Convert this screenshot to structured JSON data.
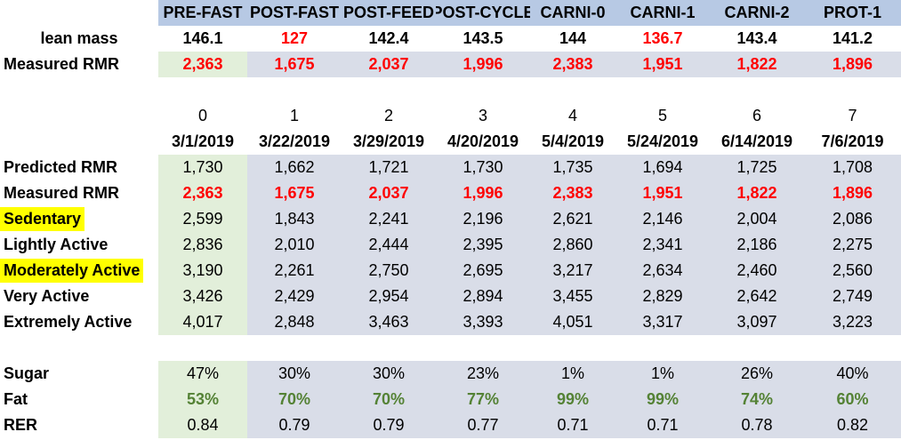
{
  "phases": [
    "PRE-FAST",
    "POST-FAST",
    "POST-FEED",
    "POST-CYCLE",
    "CARNI-0",
    "CARNI-1",
    "CARNI-2",
    "PROT-1"
  ],
  "lean_mass": {
    "label": "lean mass",
    "values": [
      "146.1",
      "127",
      "142.4",
      "143.5",
      "144",
      "136.7",
      "143.4",
      "141.2"
    ],
    "red_flags": [
      false,
      true,
      false,
      false,
      false,
      true,
      false,
      false
    ]
  },
  "measured_rmr_top": {
    "label": "Measured RMR",
    "values": [
      "2,363",
      "1,675",
      "2,037",
      "1,996",
      "2,383",
      "1,951",
      "1,822",
      "1,896"
    ]
  },
  "indices": [
    "0",
    "1",
    "2",
    "3",
    "4",
    "5",
    "6",
    "7"
  ],
  "dates": [
    "3/1/2019",
    "3/22/2019",
    "3/29/2019",
    "4/20/2019",
    "5/4/2019",
    "5/24/2019",
    "6/14/2019",
    "7/6/2019"
  ],
  "rows": [
    {
      "label": "Predicted RMR",
      "style": "normal",
      "values": [
        "1,730",
        "1,662",
        "1,721",
        "1,730",
        "1,735",
        "1,694",
        "1,725",
        "1,708"
      ]
    },
    {
      "label": "Measured RMR",
      "style": "red",
      "values": [
        "2,363",
        "1,675",
        "2,037",
        "1,996",
        "2,383",
        "1,951",
        "1,822",
        "1,896"
      ]
    },
    {
      "label": "Sedentary",
      "style": "normal",
      "highlight": true,
      "values": [
        "2,599",
        "1,843",
        "2,241",
        "2,196",
        "2,621",
        "2,146",
        "2,004",
        "2,086"
      ]
    },
    {
      "label": "Lightly Active",
      "style": "normal",
      "values": [
        "2,836",
        "2,010",
        "2,444",
        "2,395",
        "2,860",
        "2,341",
        "2,186",
        "2,275"
      ]
    },
    {
      "label": "Moderately Active",
      "style": "normal",
      "highlight": true,
      "values": [
        "3,190",
        "2,261",
        "2,750",
        "2,695",
        "3,217",
        "2,634",
        "2,460",
        "2,560"
      ]
    },
    {
      "label": "Very Active",
      "style": "normal",
      "values": [
        "3,426",
        "2,429",
        "2,954",
        "2,894",
        "3,455",
        "2,829",
        "2,642",
        "2,749"
      ]
    },
    {
      "label": "Extremely Active",
      "style": "normal",
      "values": [
        "4,017",
        "2,848",
        "3,463",
        "3,393",
        "4,051",
        "3,317",
        "3,097",
        "3,223"
      ]
    }
  ],
  "macro_rows": [
    {
      "label": "Sugar",
      "style": "normal",
      "values": [
        "47%",
        "30%",
        "30%",
        "23%",
        "1%",
        "1%",
        "26%",
        "40%"
      ]
    },
    {
      "label": "Fat",
      "style": "greentxt",
      "values": [
        "53%",
        "70%",
        "70%",
        "77%",
        "99%",
        "99%",
        "74%",
        "60%"
      ]
    },
    {
      "label": "RER",
      "style": "normal",
      "values": [
        "0.84",
        "0.79",
        "0.79",
        "0.77",
        "0.71",
        "0.71",
        "0.78",
        "0.82"
      ]
    }
  ],
  "colors": {
    "header": "#b7c9e4",
    "first_col": "#e2efda",
    "other_cols": "#d9dde8",
    "red": "#ff0000",
    "green_text": "#548235",
    "highlight": "#ffff00"
  }
}
